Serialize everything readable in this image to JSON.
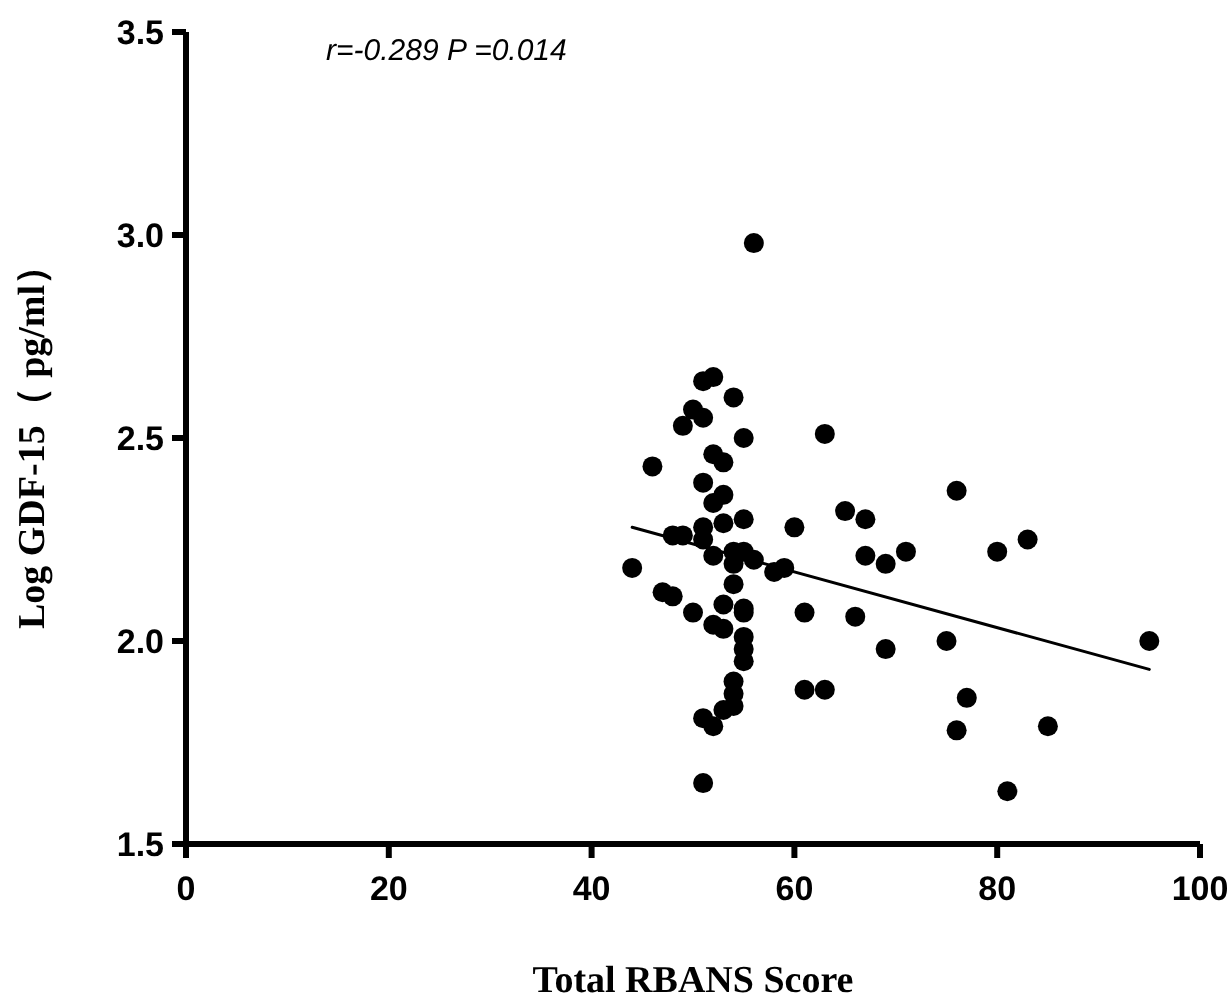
{
  "chart_data": {
    "type": "scatter",
    "xlabel": "Total RBANS Score",
    "ylabel": "Log GDF-15（ pg/ml）",
    "annotations": [
      "r=-0.289 P =0.014"
    ],
    "xlim": [
      0,
      100
    ],
    "xticks": [
      0,
      20,
      40,
      60,
      80,
      100
    ],
    "ylim": [
      1.5,
      3.5
    ],
    "yticks": [
      {
        "value": 1.5,
        "label": "1.5"
      },
      {
        "value": 2,
        "label": "2.0"
      },
      {
        "value": 2.5,
        "label": "2.5"
      },
      {
        "value": 3,
        "label": "3.0"
      },
      {
        "value": 3.5,
        "label": "3.5"
      }
    ],
    "grid": false,
    "marker": "circle",
    "series": [
      {
        "color": "#000000",
        "x": [
          56,
          52,
          51,
          54,
          50,
          51,
          49,
          55,
          63,
          52,
          53,
          46,
          51,
          53,
          52,
          55,
          53,
          76,
          65,
          67,
          60,
          51,
          51,
          48,
          49,
          83,
          80,
          71,
          67,
          69,
          54,
          55,
          56,
          52,
          54,
          44,
          58,
          59,
          54,
          47,
          48,
          53,
          50,
          55,
          55,
          61,
          66,
          52,
          53,
          55,
          55,
          55,
          75,
          95,
          69,
          54,
          54,
          61,
          63,
          54,
          53,
          51,
          52,
          77,
          76,
          85,
          81,
          51
        ],
        "values": [
          2.98,
          2.65,
          2.64,
          2.6,
          2.57,
          2.55,
          2.53,
          2.5,
          2.51,
          2.46,
          2.44,
          2.43,
          2.39,
          2.36,
          2.34,
          2.3,
          2.29,
          2.37,
          2.32,
          2.3,
          2.28,
          2.28,
          2.25,
          2.26,
          2.26,
          2.25,
          2.22,
          2.22,
          2.21,
          2.19,
          2.22,
          2.22,
          2.2,
          2.21,
          2.19,
          2.18,
          2.17,
          2.18,
          2.14,
          2.12,
          2.11,
          2.09,
          2.07,
          2.08,
          2.07,
          2.07,
          2.06,
          2.04,
          2.03,
          2.01,
          1.98,
          1.95,
          2.0,
          2.0,
          1.98,
          1.9,
          1.87,
          1.88,
          1.88,
          1.84,
          1.83,
          1.81,
          1.79,
          1.86,
          1.78,
          1.79,
          1.63,
          1.65
        ]
      },
      {
        "type": "line",
        "color": "#000000",
        "marker": "none",
        "x": [
          44,
          95
        ],
        "values": [
          2.28,
          1.93
        ]
      }
    ]
  }
}
